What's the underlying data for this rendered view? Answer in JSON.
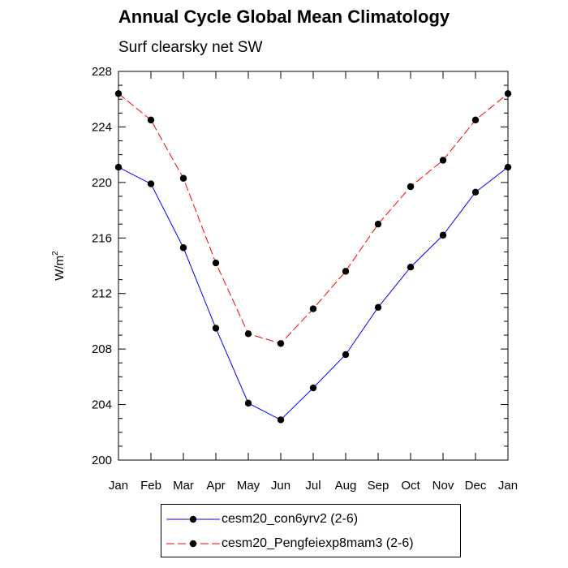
{
  "chart_data": {
    "type": "line",
    "title": "Annual Cycle Global Mean Climatology",
    "subtitle": "Surf clearsky net SW",
    "ylabel": "W/m",
    "ylabel_sup": "2",
    "ylim": [
      200,
      228
    ],
    "yticks": [
      200,
      204,
      208,
      212,
      216,
      220,
      224,
      228
    ],
    "categories": [
      "Jan",
      "Feb",
      "Mar",
      "Apr",
      "May",
      "Jun",
      "Jul",
      "Aug",
      "Sep",
      "Oct",
      "Nov",
      "Dec",
      "Jan"
    ],
    "series": [
      {
        "name": "cesm20_con6yrv2 (2-6)",
        "color": "#0000ff",
        "dash": "solid",
        "values": [
          221.1,
          219.9,
          215.3,
          209.5,
          204.1,
          202.9,
          205.2,
          207.6,
          211.0,
          213.9,
          216.2,
          219.3,
          221.1
        ]
      },
      {
        "name": "cesm20_Pengfeiexp8mam3 (2-6)",
        "color": "#ff0000",
        "dash": "dashed",
        "values": [
          226.4,
          224.5,
          220.3,
          214.2,
          209.1,
          208.4,
          210.9,
          213.6,
          217.0,
          219.7,
          221.6,
          224.5,
          226.4
        ]
      }
    ],
    "grid": false,
    "legend": "bottom"
  }
}
